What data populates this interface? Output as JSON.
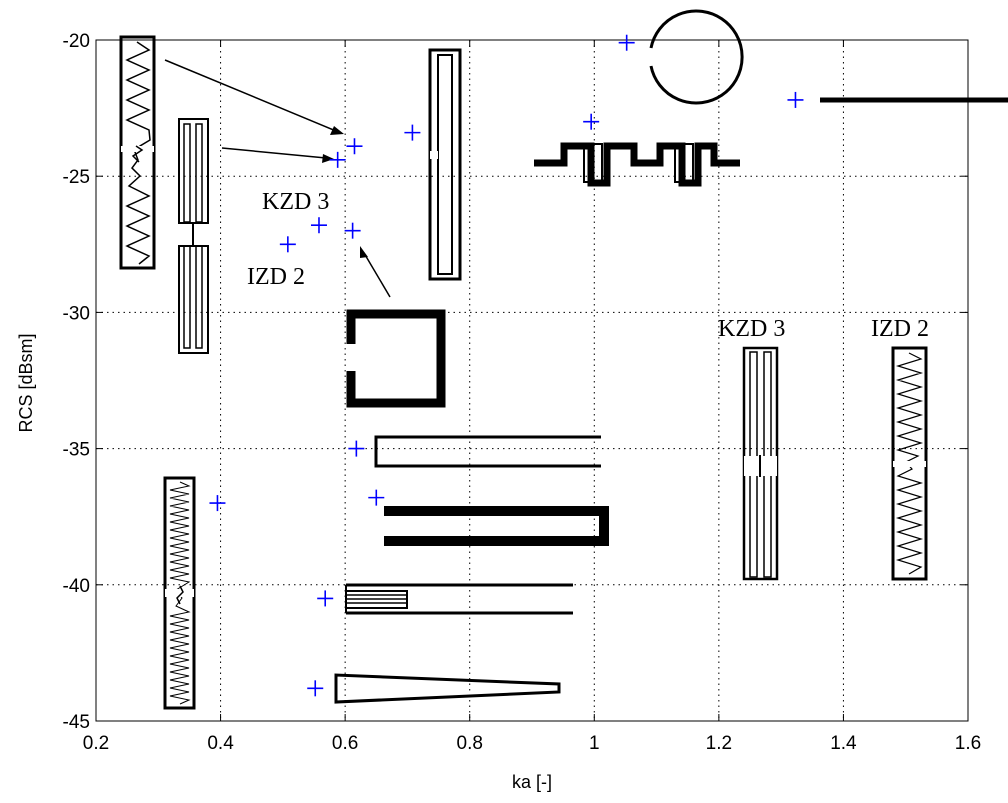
{
  "chart_data": {
    "type": "scatter",
    "title": "",
    "xlabel": "ka [-]",
    "ylabel": "RCS [dBsm]",
    "xlim": [
      0.2,
      1.6
    ],
    "ylim": [
      -45,
      -20
    ],
    "xticks": [
      "0.2",
      "0.4",
      "0.6",
      "0.8",
      "1",
      "1.2",
      "1.4",
      "1.6"
    ],
    "yticks": [
      "-20",
      "-25",
      "-30",
      "-35",
      "-40",
      "-45"
    ],
    "grid": true,
    "marker": "+",
    "marker_color": "#0000ff",
    "points": [
      {
        "x": 0.588,
        "y": -24.4
      },
      {
        "x": 0.615,
        "y": -23.9
      },
      {
        "x": 0.708,
        "y": -23.4
      },
      {
        "x": 0.995,
        "y": -23.0
      },
      {
        "x": 1.052,
        "y": -20.1
      },
      {
        "x": 1.323,
        "y": -22.2
      },
      {
        "x": 0.558,
        "y": -26.8
      },
      {
        "x": 0.612,
        "y": -27.0
      },
      {
        "x": 0.508,
        "y": -27.5
      },
      {
        "x": 0.618,
        "y": -35.0
      },
      {
        "x": 0.65,
        "y": -36.8
      },
      {
        "x": 0.395,
        "y": -37.0
      },
      {
        "x": 0.568,
        "y": -40.5
      },
      {
        "x": 0.552,
        "y": -43.8
      }
    ],
    "annotations": [
      "KZD 3",
      "IZD 2",
      "KZD 3",
      "IZD 2"
    ]
  }
}
